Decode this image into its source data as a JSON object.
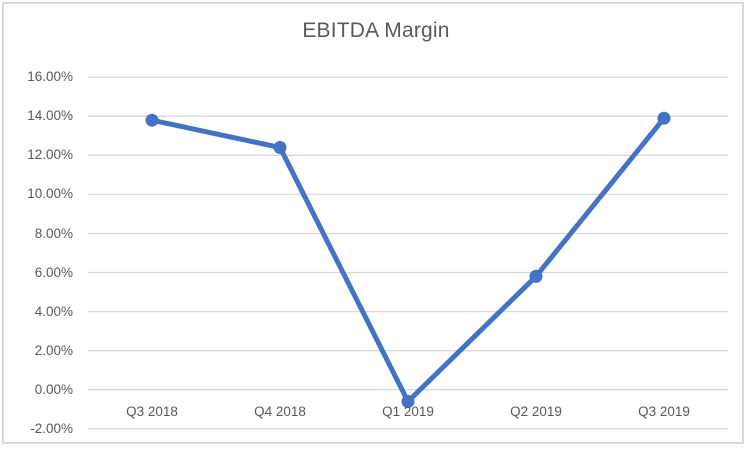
{
  "frame": {
    "border_color": "#D9D9D9",
    "background": "#FFFFFF"
  },
  "chart_data": {
    "type": "line",
    "title": "EBITDA Margin",
    "categories": [
      "Q3 2018",
      "Q4 2018",
      "Q1 2019",
      "Q2 2019",
      "Q3 2019"
    ],
    "values": [
      13.8,
      12.4,
      -0.6,
      5.8,
      13.9
    ],
    "values_unit": "percent",
    "xlabel": "",
    "ylabel": "",
    "ylim": [
      -2,
      16
    ],
    "ytick_step": 2,
    "yticks": [
      "16.00%",
      "14.00%",
      "12.00%",
      "10.00%",
      "8.00%",
      "6.00%",
      "4.00%",
      "2.00%",
      "0.00%",
      "-2.00%"
    ],
    "grid": true,
    "legend": false,
    "line_color": "#4472C4",
    "marker": "circle",
    "marker_color": "#4472C4",
    "gridline_color": "#D9D9D9",
    "label_color": "#595959",
    "title_color": "#595959"
  }
}
